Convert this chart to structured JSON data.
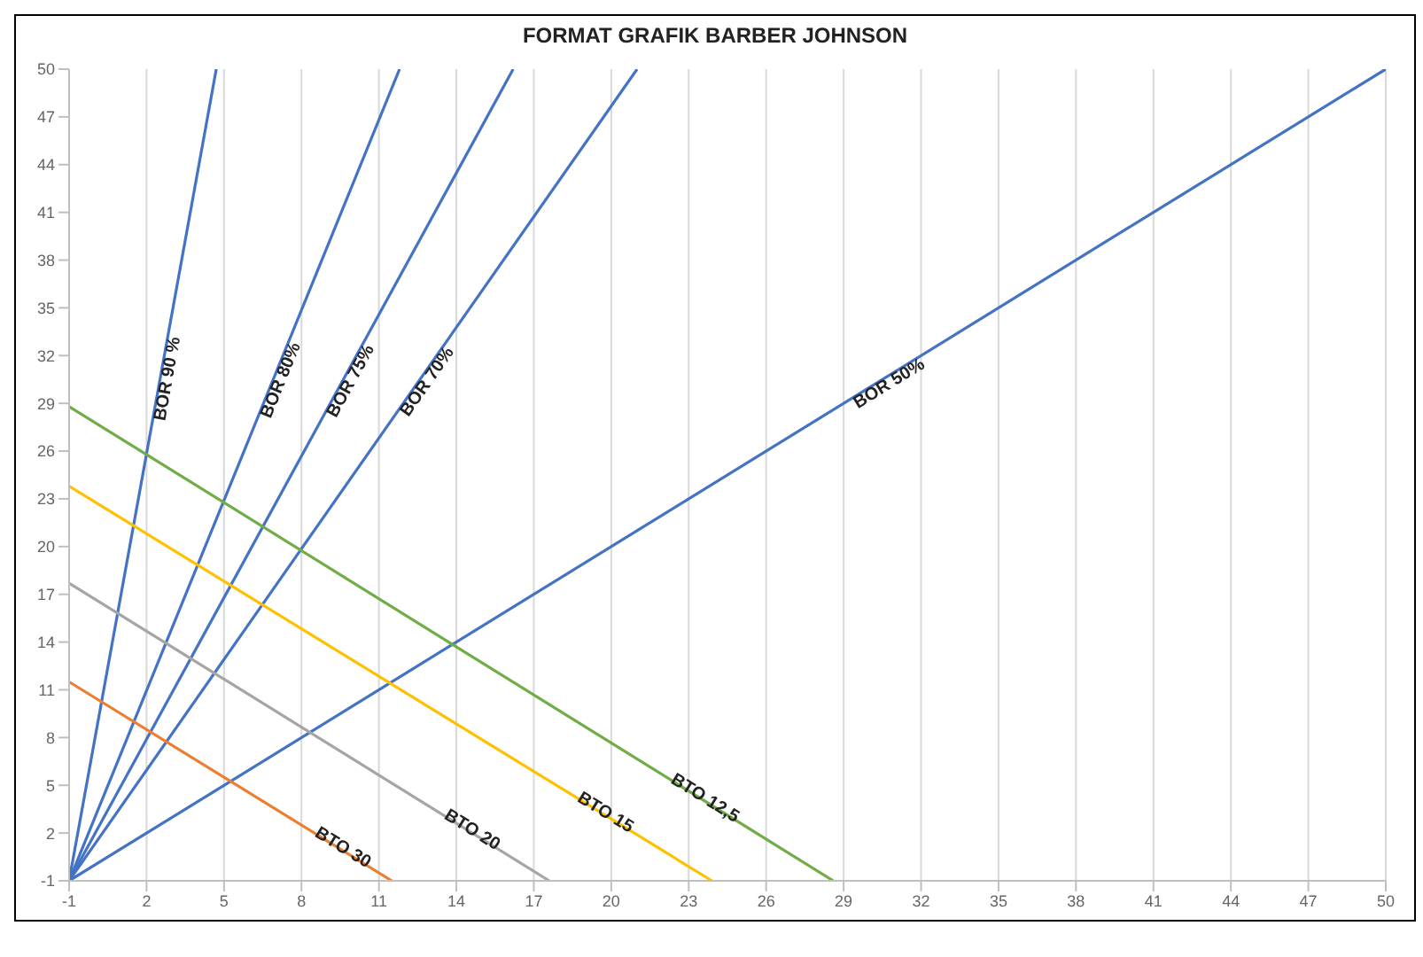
{
  "chart_data": {
    "type": "line",
    "title": "FORMAT GRAFIK BARBER JOHNSON",
    "xlim": [
      -1,
      50
    ],
    "ylim": [
      -1,
      50
    ],
    "xticks": [
      -1,
      2,
      5,
      8,
      11,
      14,
      17,
      20,
      23,
      26,
      29,
      32,
      35,
      38,
      41,
      44,
      47,
      50
    ],
    "yticks": [
      -1,
      2,
      5,
      8,
      11,
      14,
      17,
      20,
      23,
      26,
      29,
      32,
      35,
      38,
      41,
      44,
      47,
      50
    ],
    "grid": true,
    "marker": "none",
    "line_style": "solid",
    "series": [
      {
        "name": "BOR 90 %",
        "color": "#4472c4",
        "x": [
          -1,
          4.7
        ],
        "values": [
          -1,
          50
        ]
      },
      {
        "name": "BOR 80%",
        "color": "#4472c4",
        "x": [
          -1,
          11.8
        ],
        "values": [
          -1,
          50
        ]
      },
      {
        "name": "BOR 75%",
        "color": "#4472c4",
        "x": [
          -1,
          16.2
        ],
        "values": [
          -1,
          50
        ]
      },
      {
        "name": "BOR 70%",
        "color": "#4472c4",
        "x": [
          -1,
          21
        ],
        "values": [
          -1,
          50
        ]
      },
      {
        "name": "BOR 50%",
        "color": "#4472c4",
        "x": [
          -1,
          50
        ],
        "values": [
          -1,
          50
        ]
      },
      {
        "name": "BTO 30",
        "color": "#ed7d31",
        "x": [
          -1,
          11.5
        ],
        "values": [
          11.5,
          -1
        ]
      },
      {
        "name": "BTO 20",
        "color": "#a5a5a5",
        "x": [
          -1,
          17.6
        ],
        "values": [
          17.7,
          -1
        ]
      },
      {
        "name": "BTO 15",
        "color": "#ffc000",
        "x": [
          -1,
          23.9
        ],
        "values": [
          23.8,
          -1
        ]
      },
      {
        "name": "BTO 12,5",
        "color": "#70ad47",
        "x": [
          -1,
          28.6
        ],
        "values": [
          28.8,
          -1
        ]
      }
    ]
  }
}
